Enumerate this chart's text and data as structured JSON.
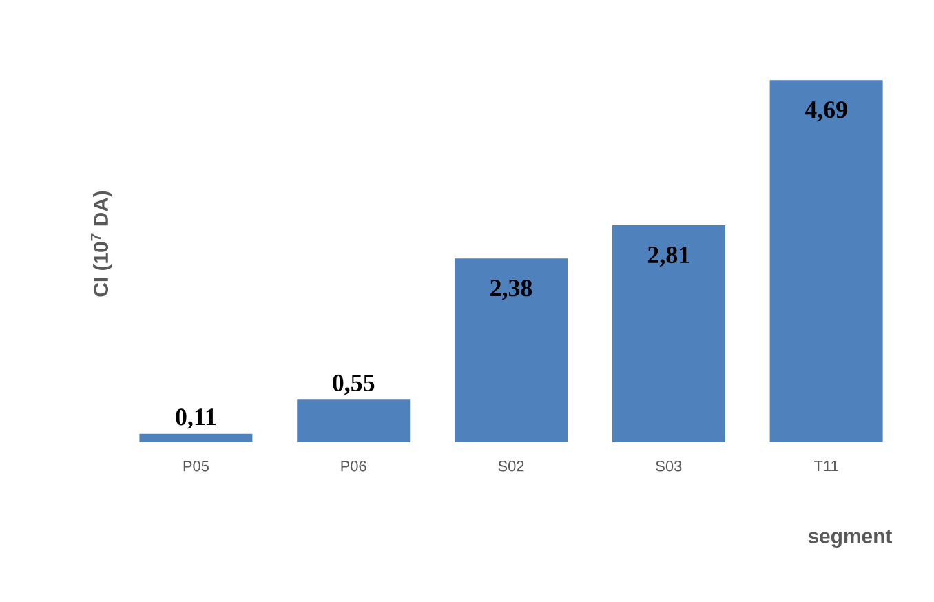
{
  "chart_data": {
    "type": "bar",
    "xlabel": "segment",
    "ylabel": "CI (10$^{7}$ DA)",
    "categories": [
      "P05",
      "P06",
      "S02",
      "S03",
      "T11"
    ],
    "values": [
      0.11,
      0.55,
      2.38,
      2.81,
      4.69
    ],
    "value_labels": [
      "0,11",
      "0,55",
      "2,38",
      "2,81",
      "4,69"
    ],
    "color": "#4f81bd"
  }
}
